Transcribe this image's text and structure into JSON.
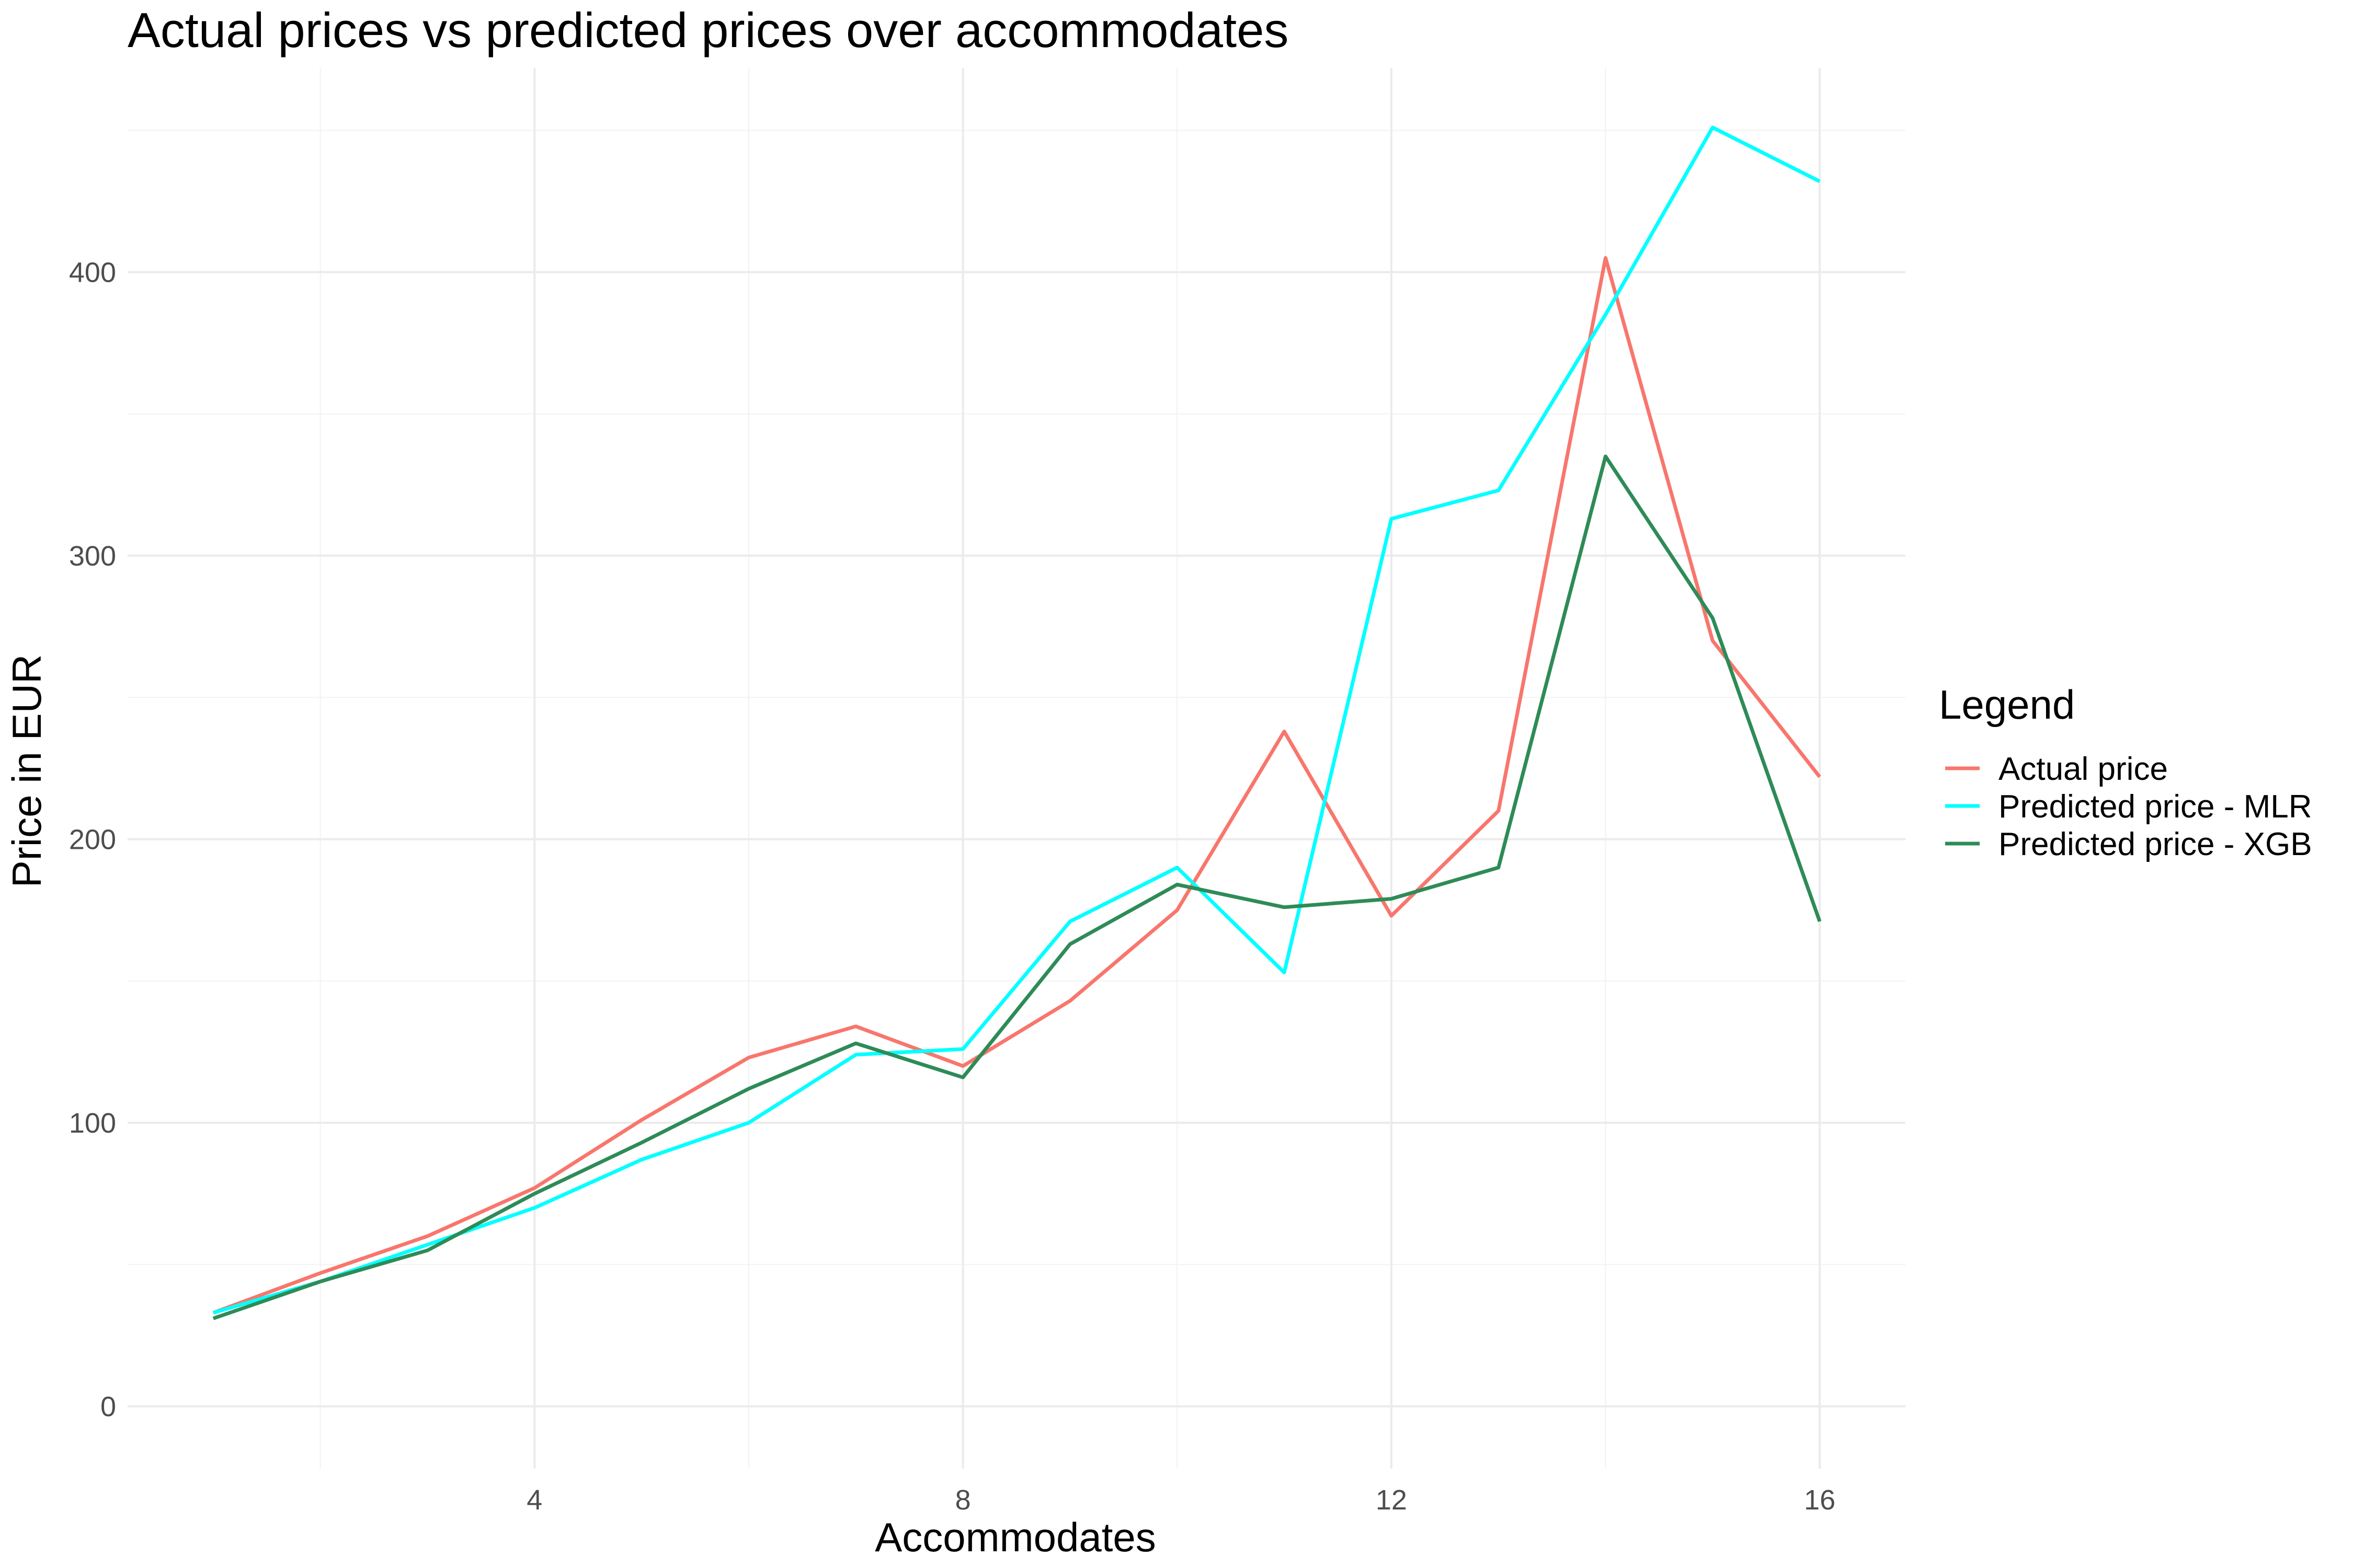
{
  "chart_data": {
    "type": "line",
    "title": "Actual prices vs predicted prices over accommodates",
    "xlabel": "Accommodates",
    "ylabel": "Price in EUR",
    "xlim": [
      0.2,
      16.8
    ],
    "ylim": [
      -22,
      472
    ],
    "x_ticks": [
      4,
      8,
      12,
      16
    ],
    "x_minor_ticks": [
      2,
      6,
      10,
      14
    ],
    "y_ticks": [
      0,
      100,
      200,
      300,
      400
    ],
    "y_minor_ticks": [
      50,
      150,
      250,
      350,
      450
    ],
    "grid": true,
    "legend": {
      "title": "Legend",
      "position": "right"
    },
    "x": [
      1,
      2,
      3,
      4,
      5,
      6,
      7,
      8,
      9,
      10,
      11,
      12,
      13,
      14,
      15,
      16
    ],
    "series": [
      {
        "name": "Actual price",
        "color": "#F8766D",
        "values": [
          33,
          47,
          60,
          77,
          101,
          123,
          134,
          120,
          143,
          175,
          238,
          173,
          210,
          405,
          270,
          222
        ]
      },
      {
        "name": "Predicted price - MLR",
        "color": "#00FFFF",
        "values": [
          33,
          44,
          57,
          70,
          87,
          100,
          124,
          126,
          171,
          190,
          153,
          313,
          323,
          385,
          451,
          432
        ]
      },
      {
        "name": "Predicted price - XGB",
        "color": "#2E8B57",
        "values": [
          31,
          44,
          55,
          75,
          93,
          112,
          128,
          116,
          163,
          184,
          176,
          179,
          190,
          335,
          278,
          171
        ]
      }
    ]
  }
}
